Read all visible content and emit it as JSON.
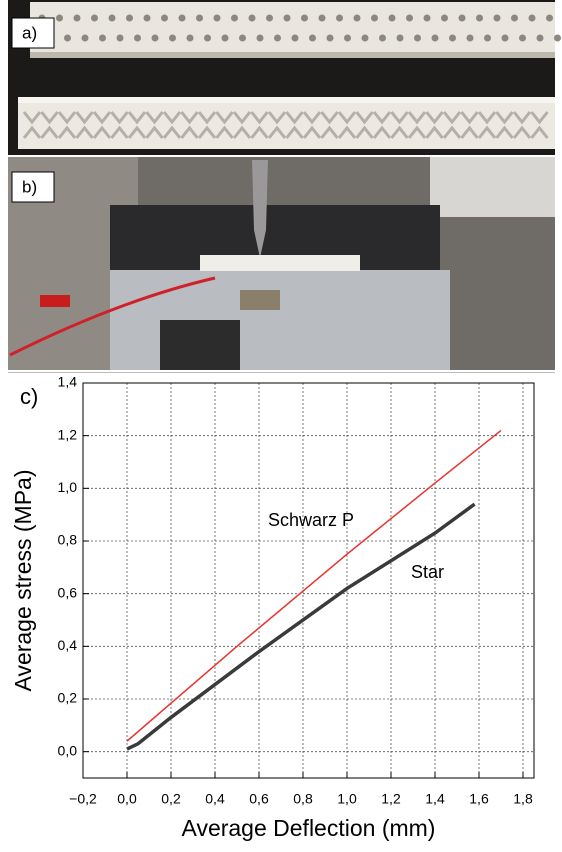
{
  "panels": {
    "a": "a)",
    "b": "b)",
    "c": "c)"
  },
  "chart_data": {
    "type": "line",
    "xlabel": "Average Deflection (mm)",
    "ylabel": "Average stress (MPa)",
    "xlim": [
      -0.2,
      1.85
    ],
    "ylim": [
      -0.1,
      1.4
    ],
    "xticks": [
      {
        "value": -0.2,
        "label": "−0,2"
      },
      {
        "value": 0,
        "label": "0,0"
      },
      {
        "value": 0.2,
        "label": "0,2"
      },
      {
        "value": 0.4,
        "label": "0,4"
      },
      {
        "value": 0.6,
        "label": "0,6"
      },
      {
        "value": 0.8,
        "label": "0,8"
      },
      {
        "value": 1.0,
        "label": "1,0"
      },
      {
        "value": 1.2,
        "label": "1,2"
      },
      {
        "value": 1.4,
        "label": "1,4"
      },
      {
        "value": 1.6,
        "label": "1,6"
      },
      {
        "value": 1.8,
        "label": "1,8"
      }
    ],
    "yticks": [
      {
        "value": 0,
        "label": "0,0"
      },
      {
        "value": 0.2,
        "label": "0,2"
      },
      {
        "value": 0.4,
        "label": "0,4"
      },
      {
        "value": 0.6,
        "label": "0,6"
      },
      {
        "value": 0.8,
        "label": "0,8"
      },
      {
        "value": 1.0,
        "label": "1,0"
      },
      {
        "value": 1.2,
        "label": "1,2"
      },
      {
        "value": 1.4,
        "label": "1,4"
      }
    ],
    "grid": true,
    "series": [
      {
        "name": "Schwarz P",
        "color": "#e8322e",
        "width": 1.5,
        "x": [
          0.0,
          0.5,
          1.0,
          1.4,
          1.7
        ],
        "values": [
          0.04,
          0.4,
          0.75,
          1.02,
          1.22
        ]
      },
      {
        "name": "Star",
        "color": "#3a3a3a",
        "width": 3.5,
        "x": [
          0.0,
          0.05,
          0.2,
          0.6,
          1.0,
          1.4,
          1.58
        ],
        "values": [
          0.01,
          0.03,
          0.13,
          0.38,
          0.62,
          0.83,
          0.94
        ]
      }
    ]
  }
}
